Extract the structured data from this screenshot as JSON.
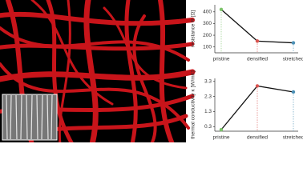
{
  "chart_data": [
    {
      "type": "line",
      "ylabel": "resistance R [Ω]",
      "categories": [
        "pristine",
        "densified",
        "stretched"
      ],
      "values": [
        420,
        150,
        135
      ],
      "color": "#111111",
      "point_colors": [
        "#7cc36a",
        "#d9534f",
        "#4a8fb5"
      ],
      "ylim": [
        50,
        460
      ],
      "yticks": [
        100,
        200,
        300,
        400
      ]
    },
    {
      "type": "line",
      "ylabel": "thermal conductivity κ [W/mK]",
      "categories": [
        "pristine",
        "densified",
        "stretched"
      ],
      "values": [
        0.1,
        3.0,
        2.6
      ],
      "color": "#111111",
      "point_colors": [
        "#7cc36a",
        "#d9534f",
        "#4a8fb5"
      ],
      "ylim": [
        0,
        3.5
      ],
      "yticks": [
        0.3,
        1.3,
        2.3,
        3.3
      ]
    }
  ]
}
